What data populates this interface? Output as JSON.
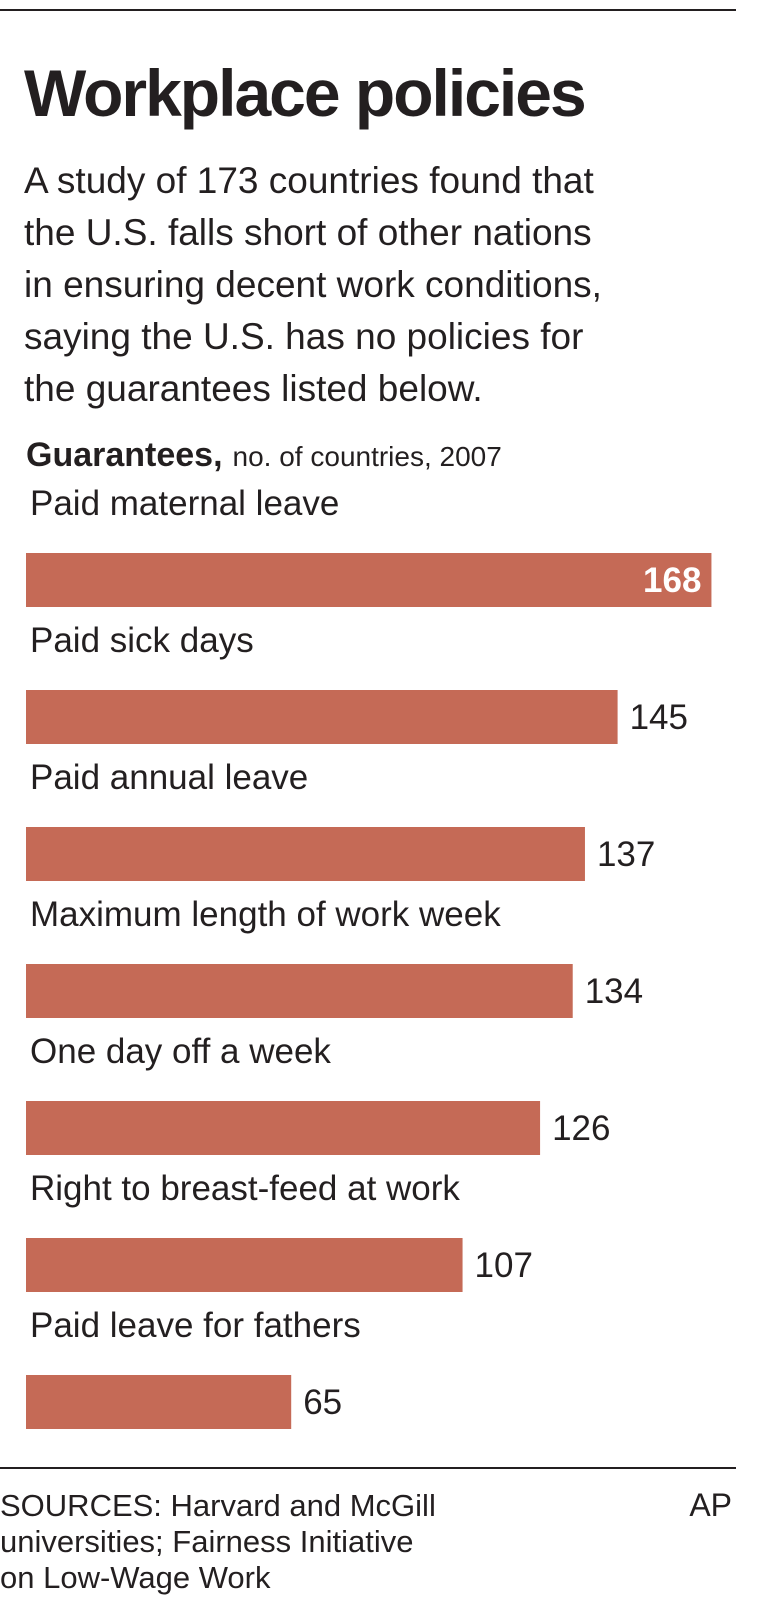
{
  "chart_data": {
    "type": "bar",
    "orientation": "horizontal",
    "title": "Workplace policies",
    "subtitle": [
      "A study of 173 countries found that",
      "the U.S. falls short of other nations",
      "in ensuring decent work conditions,",
      "saying the U.S. has no policies for",
      "the guarantees listed below."
    ],
    "axis_title": "Guarantees,",
    "axis_unit": "no. of countries, 2007",
    "categories": [
      "Paid maternal leave",
      "Paid sick days",
      "Paid annual leave",
      "Maximum length of work week",
      "One day off a week",
      "Right to breast-feed at work",
      "Paid leave for fathers"
    ],
    "values": [
      168,
      145,
      137,
      134,
      126,
      107,
      65
    ],
    "color": "#c56a56",
    "source": [
      "SOURCES: Harvard and McGill",
      "universities; Fairness Initiative",
      "on Low-Wage Work"
    ],
    "credit": "AP"
  }
}
